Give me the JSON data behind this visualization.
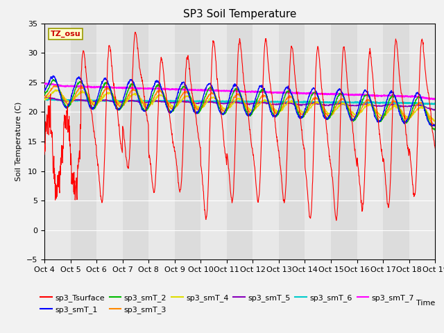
{
  "title": "SP3 Soil Temperature",
  "ylabel": "Soil Temperature (C)",
  "xlabel": "Time",
  "tz_label": "TZ_osu",
  "ylim": [
    -5,
    35
  ],
  "n_days": 15,
  "n_points": 1440,
  "surface_color": "#FF0000",
  "smT1_color": "#0000FF",
  "smT2_color": "#00BB00",
  "smT3_color": "#FF8800",
  "smT4_color": "#DDDD00",
  "smT5_color": "#8800BB",
  "smT6_color": "#00CCCC",
  "smT7_color": "#FF00FF",
  "bg_color": "#E8E8E8",
  "bg_color2": "#D0D0D0",
  "grid_color": "#FFFFFF",
  "title_fontsize": 11,
  "legend_fontsize": 8,
  "axis_fontsize": 8,
  "xtick_labels": [
    "Oct 4",
    "Oct 5",
    "Oct 6",
    "Oct 7",
    "Oct 8",
    "Oct 9",
    "Oct 10",
    "Oct 11",
    "Oct 12",
    "Oct 13",
    "Oct 14",
    "Oct 15",
    "Oct 16",
    "Oct 17",
    "Oct 18",
    "Oct 19"
  ]
}
